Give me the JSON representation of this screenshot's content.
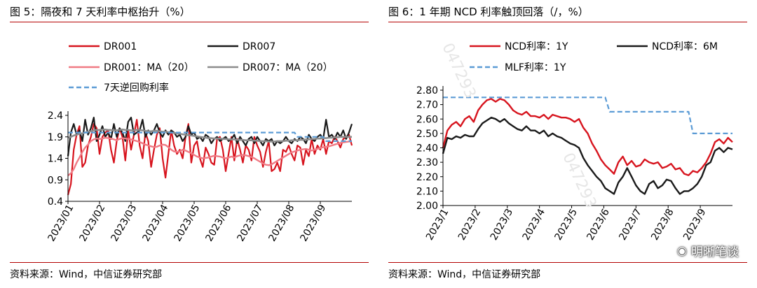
{
  "left": {
    "title": "图 5：隔夜和 7 天利率中枢抬升（%）",
    "source": "资料来源：Wind，中信证券研究部",
    "chart_data": {
      "type": "line",
      "x_tick_labels": [
        "2023/01",
        "2023/02",
        "2023/03",
        "2023/04",
        "2023/05",
        "2023/06",
        "2023/07",
        "2023/08",
        "2023/09"
      ],
      "y_ticks": [
        0.4,
        0.9,
        1.4,
        1.9,
        2.4
      ],
      "ylim": [
        0.4,
        2.4
      ],
      "grid": false,
      "legend_placement": "top",
      "series": [
        {
          "name": "DR001",
          "color": "#d7141e",
          "width": 2.2,
          "values": [
            0.55,
            0.8,
            1.6,
            1.95,
            2.15,
            1.2,
            1.3,
            1.7,
            1.9,
            2.2,
            2.1,
            1.5,
            1.9,
            2.0,
            2.05,
            1.6,
            1.3,
            1.8,
            2.1,
            1.9,
            1.35,
            2.05,
            1.6,
            1.95,
            2.3,
            1.7,
            1.4,
            2.0,
            1.8,
            1.2,
            1.6,
            1.95,
            2.1,
            1.4,
            0.95,
            1.5,
            2.05,
            1.7,
            1.5,
            1.6,
            1.4,
            1.9,
            2.2,
            1.3,
            1.7,
            1.8,
            1.4,
            1.2,
            1.65,
            1.5,
            1.3,
            1.25,
            1.85,
            1.9,
            1.6,
            1.1,
            1.5,
            1.9,
            1.35,
            1.85,
            1.6,
            1.3,
            1.7,
            1.6,
            1.35,
            1.9,
            1.7,
            1.55,
            1.2,
            1.55,
            1.8,
            1.1,
            1.15,
            1.3,
            1.1,
            1.6,
            1.55,
            1.7,
            1.5,
            1.35,
            1.7,
            1.65,
            1.25,
            1.6,
            1.45,
            1.85,
            1.5,
            1.7,
            1.6,
            1.85,
            1.5,
            1.8,
            1.75,
            1.9,
            1.8,
            1.65,
            1.85,
            1.9,
            1.95,
            1.7
          ]
        },
        {
          "name": "DR007",
          "color": "#1a1a1a",
          "width": 2.2,
          "values": [
            1.45,
            2.0,
            2.2,
            1.95,
            2.05,
            1.8,
            2.3,
            1.95,
            2.1,
            2.35,
            1.8,
            1.95,
            2.15,
            1.9,
            2.0,
            1.85,
            2.2,
            1.9,
            2.1,
            2.0,
            1.8,
            2.25,
            2.35,
            1.95,
            2.0,
            2.05,
            2.3,
            1.9,
            2.05,
            1.95,
            2.05,
            2.2,
            2.0,
            1.9,
            2.05,
            1.95,
            2.05,
            2.0,
            1.9,
            1.95,
            1.8,
            1.9,
            2.15,
            1.95,
            2.0,
            1.85,
            1.9,
            1.8,
            1.95,
            1.9,
            1.75,
            1.85,
            1.9,
            1.8,
            1.85,
            1.9,
            1.8,
            1.85,
            1.95,
            1.75,
            1.9,
            1.8,
            1.7,
            1.85,
            1.9,
            1.75,
            1.9,
            1.8,
            1.7,
            1.85,
            1.8,
            1.85,
            1.7,
            1.8,
            1.75,
            1.8,
            1.9,
            1.8,
            1.75,
            1.85,
            1.8,
            1.9,
            1.85,
            1.75,
            1.95,
            1.85,
            1.8,
            1.9,
            1.95,
            1.85,
            2.3,
            1.9,
            1.95,
            1.85,
            2.0,
            1.9,
            2.05,
            1.85,
            2.0,
            2.2
          ]
        },
        {
          "name": "DR001：MA（20）",
          "color": "#f07a84",
          "width": 2.4,
          "values": [
            1.0,
            1.05,
            1.15,
            1.3,
            1.42,
            1.55,
            1.65,
            1.72,
            1.8,
            1.84,
            1.86,
            1.85,
            1.86,
            1.88,
            1.87,
            1.86,
            1.84,
            1.82,
            1.85,
            1.87,
            1.86,
            1.85,
            1.84,
            1.82,
            1.8,
            1.78,
            1.75,
            1.72,
            1.7,
            1.68,
            1.66,
            1.67,
            1.7,
            1.72,
            1.71,
            1.66,
            1.6,
            1.56,
            1.55,
            1.56,
            1.6,
            1.58,
            1.55,
            1.52,
            1.48,
            1.44,
            1.42,
            1.4,
            1.41,
            1.42,
            1.44,
            1.46,
            1.45,
            1.44,
            1.42,
            1.4,
            1.42,
            1.44,
            1.42,
            1.45,
            1.47,
            1.48,
            1.47,
            1.45,
            1.43,
            1.4,
            1.36,
            1.32,
            1.28,
            1.25,
            1.24,
            1.26,
            1.3,
            1.34,
            1.38,
            1.42,
            1.46,
            1.5,
            1.54,
            1.56,
            1.58,
            1.6,
            1.61,
            1.62,
            1.6,
            1.58,
            1.6,
            1.62,
            1.64,
            1.66,
            1.67,
            1.68,
            1.7,
            1.72,
            1.74,
            1.76,
            1.77,
            1.78,
            1.79,
            1.8
          ]
        },
        {
          "name": "DR007：MA（20）",
          "color": "#8c8c8c",
          "width": 2.6,
          "values": [
            1.88,
            1.9,
            1.93,
            1.95,
            1.97,
            1.98,
            2.0,
            2.02,
            2.03,
            2.05,
            2.06,
            2.06,
            2.07,
            2.07,
            2.06,
            2.06,
            2.05,
            2.05,
            2.06,
            2.07,
            2.06,
            2.06,
            2.05,
            2.05,
            2.06,
            2.06,
            2.05,
            2.04,
            2.03,
            2.03,
            2.04,
            2.04,
            2.03,
            2.02,
            2.02,
            2.01,
            2.0,
            1.99,
            1.98,
            1.97,
            1.96,
            1.95,
            1.94,
            1.93,
            1.92,
            1.91,
            1.9,
            1.89,
            1.88,
            1.87,
            1.87,
            1.86,
            1.86,
            1.86,
            1.85,
            1.85,
            1.84,
            1.84,
            1.84,
            1.83,
            1.83,
            1.83,
            1.82,
            1.82,
            1.82,
            1.81,
            1.81,
            1.8,
            1.8,
            1.8,
            1.79,
            1.79,
            1.79,
            1.8,
            1.8,
            1.8,
            1.81,
            1.81,
            1.82,
            1.82,
            1.82,
            1.83,
            1.83,
            1.84,
            1.84,
            1.85,
            1.85,
            1.86,
            1.86,
            1.87,
            1.87,
            1.88,
            1.88,
            1.89,
            1.89,
            1.9,
            1.9,
            1.9,
            1.9,
            1.9
          ]
        },
        {
          "name": "7天逆回购利率",
          "color": "#5b9bd5",
          "width": 2.2,
          "dashed": true,
          "values": [
            2.0,
            2.0,
            2.0,
            2.0,
            2.0,
            2.0,
            2.0,
            2.0,
            2.0,
            2.0,
            2.0,
            2.0,
            2.0,
            2.0,
            2.0,
            2.0,
            2.0,
            2.0,
            2.0,
            2.0,
            2.0,
            2.0,
            2.0,
            2.0,
            2.0,
            2.0,
            2.0,
            2.0,
            2.0,
            2.0,
            2.0,
            2.0,
            2.0,
            2.0,
            2.0,
            2.0,
            2.0,
            2.0,
            2.0,
            2.0,
            2.0,
            2.0,
            2.0,
            2.0,
            2.0,
            2.0,
            2.0,
            2.0,
            2.0,
            2.0,
            2.0,
            2.0,
            2.0,
            2.0,
            2.0,
            2.0,
            2.0,
            2.0,
            2.0,
            2.0,
            2.0,
            2.0,
            2.0,
            2.0,
            2.0,
            2.0,
            2.0,
            2.0,
            2.0,
            2.0,
            2.0,
            2.0,
            2.0,
            2.0,
            2.0,
            2.0,
            2.0,
            2.0,
            2.0,
            2.0,
            1.9,
            1.9,
            1.9,
            1.9,
            1.9,
            1.9,
            1.9,
            1.9,
            1.9,
            1.9,
            1.8,
            1.8,
            1.8,
            1.8,
            1.8,
            1.8,
            1.8,
            1.8,
            1.8,
            1.8
          ]
        }
      ]
    }
  },
  "right": {
    "title": "图 6：1 年期 NCD 利率触顶回落（/，%）",
    "source": "资料来源：Wind，中信证券研究部",
    "brand": "明晰笔谈",
    "watermark": "047293",
    "chart_data": {
      "type": "line",
      "x_tick_labels": [
        "2023/1",
        "2023/2",
        "2023/3",
        "2023/4",
        "2023/5",
        "2023/6",
        "2023/7",
        "2023/8",
        "2023/9"
      ],
      "y_ticks": [
        2.0,
        2.1,
        2.2,
        2.3,
        2.4,
        2.5,
        2.6,
        2.7,
        2.8
      ],
      "y_tick_labels": [
        "2.00",
        "2.10",
        "2.20",
        "2.30",
        "2.40",
        "2.50",
        "2.60",
        "2.70",
        "2.80"
      ],
      "ylim": [
        2.0,
        2.8
      ],
      "grid": false,
      "legend_placement": "top",
      "series": [
        {
          "name": "NCD利率：1Y",
          "color": "#d7141e",
          "width": 2.4,
          "values": [
            2.4,
            2.52,
            2.56,
            2.58,
            2.55,
            2.6,
            2.62,
            2.58,
            2.66,
            2.7,
            2.73,
            2.74,
            2.72,
            2.74,
            2.73,
            2.7,
            2.66,
            2.64,
            2.63,
            2.65,
            2.62,
            2.62,
            2.61,
            2.63,
            2.6,
            2.63,
            2.62,
            2.61,
            2.61,
            2.6,
            2.58,
            2.6,
            2.54,
            2.5,
            2.43,
            2.38,
            2.32,
            2.28,
            2.25,
            2.22,
            2.3,
            2.34,
            2.28,
            2.31,
            2.27,
            2.28,
            2.32,
            2.3,
            2.29,
            2.3,
            2.26,
            2.27,
            2.29,
            2.25,
            2.26,
            2.22,
            2.21,
            2.24,
            2.23,
            2.26,
            2.3,
            2.36,
            2.44,
            2.46,
            2.43,
            2.47,
            2.44
          ]
        },
        {
          "name": "NCD利率：6M",
          "color": "#1a1a1a",
          "width": 2.4,
          "values": [
            2.36,
            2.47,
            2.46,
            2.48,
            2.47,
            2.49,
            2.48,
            2.48,
            2.53,
            2.57,
            2.59,
            2.61,
            2.6,
            2.58,
            2.6,
            2.57,
            2.55,
            2.53,
            2.52,
            2.55,
            2.52,
            2.52,
            2.5,
            2.52,
            2.48,
            2.5,
            2.48,
            2.47,
            2.45,
            2.43,
            2.42,
            2.4,
            2.33,
            2.28,
            2.24,
            2.2,
            2.17,
            2.12,
            2.1,
            2.08,
            2.16,
            2.2,
            2.26,
            2.2,
            2.14,
            2.1,
            2.08,
            2.15,
            2.17,
            2.12,
            2.14,
            2.18,
            2.17,
            2.12,
            2.08,
            2.1,
            2.1,
            2.12,
            2.15,
            2.2,
            2.28,
            2.3,
            2.38,
            2.4,
            2.37,
            2.4,
            2.39
          ]
        },
        {
          "name": "MLF利率：1Y",
          "color": "#5b9bd5",
          "width": 2.2,
          "dashed": true,
          "values": [
            2.75,
            2.75,
            2.75,
            2.75,
            2.75,
            2.75,
            2.75,
            2.75,
            2.75,
            2.75,
            2.75,
            2.75,
            2.75,
            2.75,
            2.75,
            2.75,
            2.75,
            2.75,
            2.75,
            2.75,
            2.75,
            2.75,
            2.75,
            2.75,
            2.75,
            2.75,
            2.75,
            2.75,
            2.75,
            2.75,
            2.75,
            2.75,
            2.75,
            2.75,
            2.75,
            2.75,
            2.75,
            2.75,
            2.65,
            2.65,
            2.65,
            2.65,
            2.65,
            2.65,
            2.65,
            2.65,
            2.65,
            2.65,
            2.65,
            2.65,
            2.65,
            2.65,
            2.65,
            2.65,
            2.65,
            2.65,
            2.65,
            2.5,
            2.5,
            2.5,
            2.5,
            2.5,
            2.5,
            2.5,
            2.5,
            2.5,
            2.5
          ]
        }
      ]
    }
  }
}
